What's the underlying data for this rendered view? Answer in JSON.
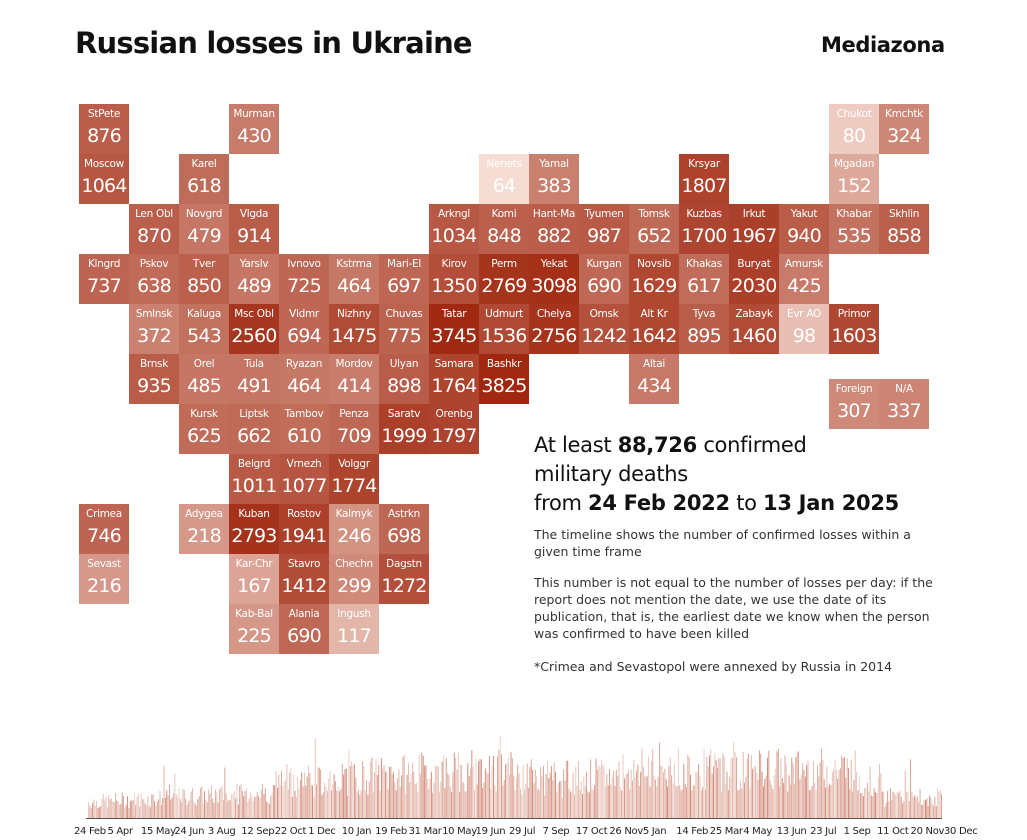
{
  "title": "Russian losses in Ukraine",
  "brand": "Mediazona",
  "chart_data": {
    "type": "tile-map",
    "color_scale": {
      "low": "#f6ddd4",
      "high": "#a02810",
      "min": 64,
      "max": 3825
    },
    "regions": [
      {
        "name": "StPete",
        "value": 876
      },
      {
        "name": "Moscow",
        "value": 1064
      },
      {
        "name": "Klngrd",
        "value": 737
      },
      {
        "name": "Murman",
        "value": 430
      },
      {
        "name": "Karel",
        "value": 618
      },
      {
        "name": "Len Obl",
        "value": 870
      },
      {
        "name": "Novgrd",
        "value": 479
      },
      {
        "name": "Vlgda",
        "value": 914
      },
      {
        "name": "Pskov",
        "value": 638
      },
      {
        "name": "Tver",
        "value": 850
      },
      {
        "name": "Yarslv",
        "value": 489
      },
      {
        "name": "Ivnovo",
        "value": 725
      },
      {
        "name": "Kstrma",
        "value": 464
      },
      {
        "name": "Mari-El",
        "value": 697
      },
      {
        "name": "Smlnsk",
        "value": 372
      },
      {
        "name": "Kaluga",
        "value": 543
      },
      {
        "name": "Msc Obl",
        "value": 2560
      },
      {
        "name": "Vldmr",
        "value": 694
      },
      {
        "name": "Nizhny",
        "value": 1475
      },
      {
        "name": "Chuvas",
        "value": 775
      },
      {
        "name": "Brnsk",
        "value": 935
      },
      {
        "name": "Orel",
        "value": 485
      },
      {
        "name": "Tula",
        "value": 491
      },
      {
        "name": "Ryazan",
        "value": 464
      },
      {
        "name": "Mordov",
        "value": 414
      },
      {
        "name": "Ulyan",
        "value": 898
      },
      {
        "name": "Kursk",
        "value": 625
      },
      {
        "name": "Liptsk",
        "value": 662
      },
      {
        "name": "Tambov",
        "value": 610
      },
      {
        "name": "Penza",
        "value": 709
      },
      {
        "name": "Saratv",
        "value": 1999
      },
      {
        "name": "Orenbg",
        "value": 1797
      },
      {
        "name": "Belgrd",
        "value": 1011
      },
      {
        "name": "Vrnezh",
        "value": 1077
      },
      {
        "name": "Volggr",
        "value": 1774
      },
      {
        "name": "Crimea",
        "value": 746
      },
      {
        "name": "Sevast",
        "value": 216
      },
      {
        "name": "Adygea",
        "value": 218
      },
      {
        "name": "Kuban",
        "value": 2793
      },
      {
        "name": "Rostov",
        "value": 1941
      },
      {
        "name": "Kalmyk",
        "value": 246
      },
      {
        "name": "Astrkn",
        "value": 698
      },
      {
        "name": "Kar-Chr",
        "value": 167
      },
      {
        "name": "Stavro",
        "value": 1412
      },
      {
        "name": "Chechn",
        "value": 299
      },
      {
        "name": "Dagstn",
        "value": 1272
      },
      {
        "name": "Kab-Bal",
        "value": 225
      },
      {
        "name": "Alania",
        "value": 690
      },
      {
        "name": "Ingush",
        "value": 117
      },
      {
        "name": "Nenets",
        "value": 64
      },
      {
        "name": "Yamal",
        "value": 383
      },
      {
        "name": "Arkngl",
        "value": 1034
      },
      {
        "name": "Komi",
        "value": 848
      },
      {
        "name": "Hant-Ma",
        "value": 882
      },
      {
        "name": "Tyumen",
        "value": 987
      },
      {
        "name": "Tomsk",
        "value": 652
      },
      {
        "name": "Kirov",
        "value": 1350
      },
      {
        "name": "Perm",
        "value": 2769
      },
      {
        "name": "Yekat",
        "value": 3098
      },
      {
        "name": "Kurgan",
        "value": 690
      },
      {
        "name": "Novsib",
        "value": 1629
      },
      {
        "name": "Tatar",
        "value": 3745
      },
      {
        "name": "Udmurt",
        "value": 1536
      },
      {
        "name": "Chelya",
        "value": 2756
      },
      {
        "name": "Omsk",
        "value": 1242
      },
      {
        "name": "Alt Kr",
        "value": 1642
      },
      {
        "name": "Samara",
        "value": 1764
      },
      {
        "name": "Bashkr",
        "value": 3825
      },
      {
        "name": "Altai",
        "value": 434
      },
      {
        "name": "Krsyar",
        "value": 1807
      },
      {
        "name": "Kuzbas",
        "value": 1700
      },
      {
        "name": "Irkut",
        "value": 1967
      },
      {
        "name": "Yakut",
        "value": 940
      },
      {
        "name": "Khabar",
        "value": 535
      },
      {
        "name": "Skhlin",
        "value": 858
      },
      {
        "name": "Khakas",
        "value": 617
      },
      {
        "name": "Buryat",
        "value": 2030
      },
      {
        "name": "Amursk",
        "value": 425
      },
      {
        "name": "Tyva",
        "value": 895
      },
      {
        "name": "Zabayk",
        "value": 1460
      },
      {
        "name": "Evr AO",
        "value": 98
      },
      {
        "name": "Primor",
        "value": 1603
      },
      {
        "name": "Chukot",
        "value": 80
      },
      {
        "name": "Kmchtk",
        "value": 324
      },
      {
        "name": "Mgadan",
        "value": 152
      },
      {
        "name": "Foreign",
        "value": 307
      },
      {
        "name": "N/A",
        "value": 337
      }
    ],
    "timeline": {
      "x_labels": [
        "24 Feb",
        "5 Apr",
        "15 May",
        "24 Jun",
        "3 Aug",
        "12 Sep",
        "22 Oct",
        "1 Dec",
        "10 Jan",
        "19 Feb",
        "31 Mar",
        "10 May",
        "19 Jun",
        "29 Jul",
        "7 Sep",
        "17 Oct",
        "26 Nov",
        "5 Jan",
        "14 Feb",
        "25 Mar",
        "4 May",
        "13 Jun",
        "23 Jul",
        "1 Sep",
        "11 Oct",
        "20 Nov",
        "30 Dec"
      ],
      "bar_color": "#c9715a"
    }
  },
  "summary": {
    "l1_pre": "At least ",
    "total": "88,726",
    "l1_post": " confirmed",
    "l2": "military deaths",
    "l3_pre": "from ",
    "date_from": "24 Feb 2022",
    "l3_mid": " to ",
    "date_to": "13 Jan 2025",
    "desc1": "The timeline shows the number of confirmed losses within a given time frame",
    "desc2": "This number is not equal to the number of losses per day: if the report does not mention the date, we use the date of its publication, that is, the earliest date we know when the person was confirmed to have been killed",
    "note": "*Crimea and Sevastopol were annexed by Russia in 2014"
  }
}
